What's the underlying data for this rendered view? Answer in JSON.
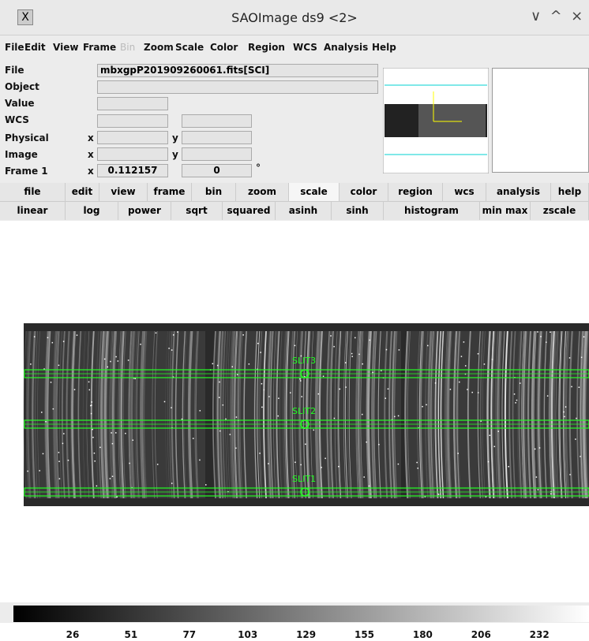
{
  "window": {
    "title": "SAOImage ds9 <2>"
  },
  "menubar": {
    "items": [
      "File",
      "Edit",
      "View",
      "Frame",
      "Bin",
      "Zoom",
      "Scale",
      "Color",
      "Region",
      "WCS",
      "Analysis",
      "Help"
    ],
    "disabled": [
      4
    ]
  },
  "info_panel": {
    "labels": [
      "File",
      "Object",
      "Value",
      "WCS",
      "Physical",
      "Image",
      "Frame 1"
    ],
    "file": "mbxgpP201909260061.fits[SCI]",
    "x_label": "x",
    "y_label": "y",
    "frame_x": "0.112157",
    "frame_y": "0",
    "frame_unit": "°"
  },
  "buttonbar": {
    "main": [
      "file",
      "edit",
      "view",
      "frame",
      "bin",
      "zoom",
      "scale",
      "color",
      "region",
      "wcs",
      "analysis",
      "help"
    ],
    "selected": 6,
    "scale": [
      "linear",
      "log",
      "power",
      "sqrt",
      "squared",
      "asinh",
      "sinh",
      "histogram",
      "min max",
      "zscale"
    ]
  },
  "regions": [
    {
      "label": "SLIT3"
    },
    {
      "label": "SLIT2"
    },
    {
      "label": "SLIT1"
    }
  ],
  "colorbar": {
    "ticks": [
      26,
      51,
      77,
      103,
      129,
      155,
      180,
      206,
      232
    ]
  }
}
